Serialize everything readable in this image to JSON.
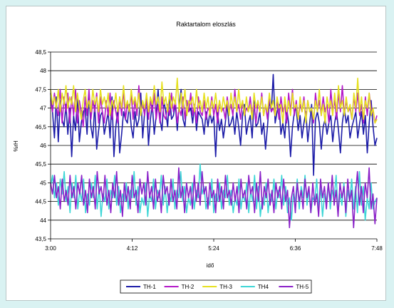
{
  "chart_data": {
    "type": "line",
    "title": "Raktartalom eloszlás",
    "xlabel": "idő",
    "ylabel": "%rH",
    "ylim": [
      43.5,
      48.5
    ],
    "yticks": [
      "48,5",
      "48",
      "47,5",
      "47",
      "46,5",
      "46",
      "45,5",
      "45",
      "44,5",
      "44",
      "43,5"
    ],
    "xticks": [
      "3:00",
      "4:12",
      "5:24",
      "6:36",
      "7:48"
    ],
    "grid": "horizontal",
    "legend": "bottom",
    "series": [
      {
        "name": "TH-1",
        "color": "#1c1ca8",
        "values": [
          47.4,
          46.9,
          46.2,
          47.3,
          46.1,
          47.2,
          46.7,
          46.5,
          47.1,
          46.3,
          47.0,
          45.7,
          46.8,
          46.4,
          47.3,
          46.1,
          46.6,
          46.9,
          47.0,
          46.3,
          47.4,
          46.5,
          46.2,
          47.1,
          45.9,
          46.4,
          46.8,
          46.9,
          46.3,
          46.6,
          46.9,
          46.2,
          47.3,
          45.7,
          46.5,
          47.0,
          45.8,
          46.3,
          46.9,
          46.7,
          46.6,
          47.1,
          46.5,
          46.2,
          46.9,
          46.5,
          46.7,
          47.4,
          46.2,
          46.9,
          47.3,
          46.0,
          46.7,
          47.1,
          46.3,
          46.8,
          47.5,
          46.7,
          46.4,
          47.2,
          46.9,
          46.5,
          47.4,
          46.7,
          46.8,
          47.1,
          46.4,
          47.1,
          47.5,
          46.7,
          46.5,
          47.2,
          46.9,
          47.0,
          46.6,
          47.1,
          46.4,
          46.9,
          46.8,
          46.7,
          46.3,
          46.9,
          46.5,
          46.9,
          46.6,
          46.8,
          45.7,
          46.9,
          46.4,
          46.7,
          46.2,
          46.6,
          47.1,
          46.5,
          46.6,
          46.8,
          46.3,
          46.9,
          46.5,
          46.0,
          46.8,
          47.1,
          46.3,
          46.6,
          46.8,
          46.2,
          47.2,
          46.5,
          46.6,
          46.9,
          46.3,
          46.6,
          45.9,
          46.5,
          47.2,
          46.9,
          47.9,
          46.6,
          46.9,
          47.1,
          46.3,
          46.6,
          46.2,
          47.0,
          46.6,
          45.7,
          46.5,
          46.9,
          47.0,
          46.4,
          46.8,
          46.2,
          46.6,
          46.9,
          46.1,
          46.6,
          47.1,
          45.2,
          46.7,
          46.9,
          46.6,
          45.9,
          46.5,
          46.7,
          46.3,
          46.6,
          46.8,
          46.1,
          46.6,
          46.9,
          46.4,
          45.8,
          46.6,
          47.0,
          46.6,
          46.8,
          46.2,
          46.5,
          46.7,
          46.9,
          46.2,
          46.6,
          46.9,
          46.3,
          46.8,
          45.8,
          46.6,
          47.2,
          46.5,
          46.0,
          46.2
        ]
      },
      {
        "name": "TH-2",
        "color": "#b418c8",
        "values": [
          47.2,
          46.9,
          47.4,
          47.0,
          46.8,
          47.5,
          46.6,
          47.3,
          46.9,
          47.4,
          46.6,
          47.3,
          46.8,
          47.5,
          46.6,
          47.2,
          46.9,
          46.5,
          47.3,
          46.8,
          47.5,
          46.7,
          47.2,
          46.9,
          47.4,
          46.6,
          47.3,
          46.9,
          46.6,
          47.2,
          46.8,
          47.4,
          46.7,
          47.2,
          46.9,
          46.6,
          47.3,
          46.8,
          47.5,
          46.7,
          47.1,
          46.9,
          47.4,
          46.7,
          47.2,
          46.8,
          47.6,
          46.9,
          47.1,
          46.8,
          47.3,
          46.7,
          47.2,
          46.9,
          47.4,
          46.7,
          47.1,
          46.6,
          47.3,
          46.8,
          46.7,
          47.1,
          46.8,
          47.4,
          46.9,
          47.2,
          46.6,
          47.0,
          46.8,
          47.3,
          46.7,
          47.2,
          46.9,
          47.4,
          46.8,
          47.1,
          46.6,
          47.3,
          46.9,
          46.8,
          47.2,
          46.7,
          47.0,
          46.9,
          47.3,
          46.8,
          47.1,
          46.6,
          47.2,
          46.9,
          47.0,
          46.7,
          47.3,
          46.9,
          47.1,
          46.8,
          47.5,
          46.9,
          47.1,
          46.7,
          47.2,
          46.8,
          47.0,
          46.9,
          47.3,
          46.8,
          47.1,
          46.6,
          47.2,
          46.9,
          47.4,
          46.8,
          47.1,
          46.7,
          47.3,
          46.9,
          47.0,
          46.8,
          47.2,
          46.7,
          47.3,
          46.9,
          47.1,
          46.6,
          47.4,
          46.9,
          47.5,
          46.8,
          47.2,
          46.7,
          47.1,
          46.9,
          47.3,
          46.7,
          47.2,
          46.9,
          47.0,
          46.6,
          47.4,
          46.9,
          47.2,
          46.8,
          47.3,
          46.9,
          47.1,
          46.6,
          47.5,
          46.9,
          47.2,
          46.7,
          47.4,
          46.9,
          47.6,
          46.8,
          47.2,
          46.9,
          47.0,
          46.7,
          47.3,
          46.9,
          47.4,
          46.8,
          47.1,
          46.6,
          47.3,
          46.8,
          47.4,
          47.0,
          46.9,
          46.6,
          46.8
        ]
      },
      {
        "name": "TH-3",
        "color": "#e6e01e",
        "values": [
          47.5,
          47.1,
          47.3,
          47.0,
          47.5,
          46.9,
          47.4,
          47.1,
          47.6,
          47.0,
          47.3,
          47.1,
          47.6,
          46.9,
          47.4,
          47.0,
          46.7,
          47.2,
          47.5,
          47.0,
          47.2,
          46.9,
          47.5,
          47.1,
          47.3,
          46.9,
          47.5,
          47.1,
          47.3,
          47.0,
          47.4,
          46.8,
          47.2,
          47.0,
          47.4,
          46.9,
          47.3,
          47.0,
          47.6,
          47.0,
          47.2,
          46.9,
          47.5,
          47.1,
          47.3,
          47.0,
          47.4,
          46.8,
          47.2,
          47.0,
          47.4,
          46.9,
          47.3,
          47.1,
          47.6,
          47.1,
          47.3,
          46.9,
          47.7,
          47.1,
          47.3,
          46.9,
          47.4,
          47.0,
          47.3,
          47.1,
          47.8,
          46.9,
          47.4,
          47.0,
          47.5,
          46.8,
          47.2,
          47.1,
          47.3,
          46.9,
          47.5,
          47.0,
          47.2,
          46.9,
          47.4,
          47.0,
          47.3,
          46.8,
          47.2,
          47.0,
          47.4,
          46.9,
          47.2,
          46.9,
          47.3,
          47.0,
          47.2,
          46.8,
          47.4,
          47.0,
          47.3,
          46.9,
          47.5,
          47.0,
          47.2,
          46.8,
          47.3,
          46.9,
          47.1,
          46.7,
          47.4,
          47.0,
          47.2,
          46.9,
          47.3,
          46.8,
          47.1,
          46.9,
          47.4,
          47.0,
          47.2,
          46.8,
          47.3,
          47.0,
          47.1,
          46.6,
          47.3,
          46.9,
          47.2,
          46.8,
          47.4,
          47.0,
          47.1,
          46.7,
          47.3,
          46.9,
          47.2,
          46.6,
          47.2,
          46.9,
          47.0,
          46.7,
          47.2,
          46.9,
          47.5,
          46.8,
          47.1,
          46.6,
          47.3,
          47.0,
          47.2,
          46.8,
          47.4,
          46.9,
          47.6,
          47.0,
          47.2,
          46.8,
          47.3,
          46.9,
          47.1,
          46.7,
          47.4,
          47.0,
          47.8,
          46.9,
          47.3,
          46.7,
          47.2,
          47.0,
          47.4,
          46.8,
          47.0,
          46.6,
          46.7
        ]
      },
      {
        "name": "TH4",
        "color": "#3ed6d6",
        "values": [
          44.9,
          45.2,
          44.6,
          45.0,
          44.4,
          45.1,
          44.7,
          45.3,
          44.5,
          44.9,
          44.2,
          45.0,
          44.6,
          45.2,
          44.3,
          44.8,
          44.5,
          45.1,
          44.2,
          44.7,
          44.4,
          45.0,
          44.6,
          45.2,
          44.3,
          44.9,
          44.1,
          44.7,
          44.5,
          45.1,
          44.3,
          44.8,
          44.6,
          45.2,
          44.4,
          44.9,
          44.2,
          44.7,
          44.5,
          45.0,
          44.3,
          44.8,
          44.6,
          45.3,
          44.4,
          44.9,
          44.2,
          44.6,
          44.4,
          45.0,
          44.1,
          44.7,
          44.5,
          45.1,
          44.3,
          44.8,
          44.6,
          45.2,
          44.4,
          44.9,
          44.2,
          44.7,
          44.5,
          45.1,
          44.3,
          44.8,
          44.6,
          45.3,
          44.5,
          44.9,
          44.2,
          44.6,
          44.4,
          45.0,
          44.3,
          44.8,
          44.6,
          45.5,
          44.7,
          44.9,
          44.3,
          44.6,
          44.4,
          45.1,
          44.2,
          44.7,
          44.5,
          45.0,
          44.3,
          44.8,
          44.6,
          45.2,
          44.4,
          44.8,
          44.2,
          44.6,
          44.4,
          45.1,
          44.3,
          44.7,
          44.5,
          45.0,
          44.2,
          44.8,
          44.5,
          45.2,
          44.3,
          44.9,
          44.1,
          44.6,
          44.4,
          45.0,
          44.2,
          44.7,
          44.5,
          45.1,
          44.3,
          44.8,
          44.6,
          45.2,
          44.4,
          44.9,
          44.2,
          44.6,
          44.0,
          44.7,
          44.5,
          45.1,
          44.3,
          44.9,
          44.6,
          45.2,
          44.4,
          44.8,
          44.2,
          44.6,
          44.5,
          45.1,
          44.3,
          44.9,
          44.1,
          44.7,
          44.5,
          45.0,
          44.3,
          44.8,
          44.6,
          45.2,
          44.2,
          44.7,
          44.4,
          45.0,
          44.1,
          44.8,
          44.5,
          45.1,
          44.3,
          44.9,
          44.2,
          45.3,
          44.4,
          44.9,
          44.0,
          44.6,
          44.3,
          45.0,
          44.3,
          44.5,
          44.6
        ]
      },
      {
        "name": "TH-5",
        "color": "#8a20c8",
        "values": [
          45.0,
          44.7,
          45.2,
          44.6,
          44.9,
          44.3,
          45.1,
          44.5,
          44.8,
          44.4,
          45.2,
          44.6,
          44.9,
          44.3,
          45.0,
          44.7,
          45.2,
          44.4,
          44.8,
          44.2,
          45.1,
          44.6,
          44.9,
          44.3,
          45.3,
          44.7,
          44.9,
          44.5,
          45.2,
          44.4,
          44.8,
          44.2,
          45.0,
          44.6,
          45.3,
          44.4,
          44.8,
          44.1,
          45.0,
          44.5,
          44.9,
          44.3,
          45.2,
          44.6,
          44.8,
          44.2,
          45.1,
          44.7,
          45.0,
          44.4,
          45.3,
          44.6,
          44.9,
          44.3,
          45.1,
          44.5,
          44.8,
          44.2,
          45.2,
          44.7,
          44.9,
          44.4,
          45.1,
          44.5,
          44.8,
          44.3,
          45.4,
          44.6,
          44.9,
          44.2,
          45.0,
          44.6,
          44.9,
          44.3,
          45.2,
          44.5,
          45.0,
          44.4,
          45.3,
          44.7,
          44.9,
          44.3,
          45.0,
          44.6,
          44.8,
          44.2,
          45.1,
          44.5,
          44.9,
          44.3,
          45.2,
          44.6,
          44.8,
          44.4,
          45.0,
          44.5,
          44.9,
          44.2,
          45.1,
          44.6,
          44.8,
          44.3,
          45.2,
          44.7,
          44.9,
          44.2,
          45.0,
          44.5,
          45.3,
          44.3,
          44.9,
          44.6,
          45.1,
          44.4,
          44.8,
          44.2,
          45.0,
          44.6,
          44.9,
          44.3,
          45.1,
          44.5,
          44.8,
          43.8,
          44.6,
          44.9,
          44.2,
          45.0,
          44.5,
          44.8,
          44.3,
          45.1,
          44.6,
          44.9,
          44.2,
          45.0,
          44.4,
          44.7,
          44.1,
          45.1,
          44.6,
          44.9,
          44.3,
          45.0,
          44.5,
          45.2,
          44.4,
          44.8,
          44.1,
          45.0,
          44.6,
          44.9,
          44.2,
          45.1,
          44.5,
          44.8,
          43.8,
          44.7,
          45.3,
          44.4,
          44.9,
          44.2,
          45.0,
          44.6,
          45.4,
          44.3,
          44.7,
          43.9,
          44.6
        ]
      }
    ]
  }
}
